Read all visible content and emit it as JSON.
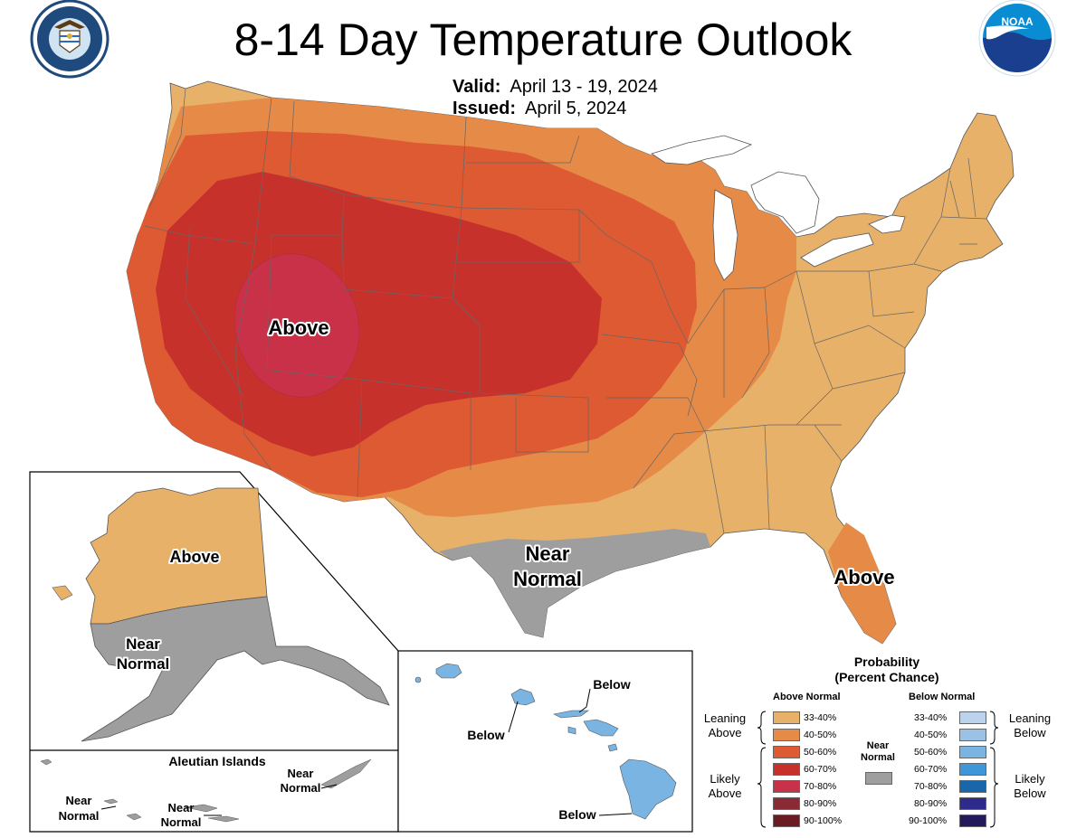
{
  "header": {
    "title": "8-14 Day Temperature Outlook",
    "valid_label": "Valid:",
    "valid_value": "April 13 - 19, 2024",
    "issued_label": "Issued:",
    "issued_value": "April 5, 2024",
    "left_logo": "seal-icon",
    "right_logo": "noaa-logo-icon",
    "right_logo_text": "NOAA"
  },
  "map": {
    "conus_labels": [
      "Above",
      "Near",
      "Normal",
      "Above"
    ],
    "alaska_labels": [
      "Above",
      "Near",
      "Normal"
    ],
    "aleutian_title": "Aleutian Islands",
    "aleutian_labels": [
      "Near",
      "Normal",
      "Near",
      "Normal",
      "Near",
      "Normal"
    ],
    "hawaii_labels": [
      "Below",
      "Below",
      "Below"
    ]
  },
  "legend": {
    "title_line1": "Probability",
    "title_line2": "(Percent Chance)",
    "above_header": "Above Normal",
    "below_header": "Below Normal",
    "near_label_1": "Near",
    "near_label_2": "Normal",
    "leaning_above_1": "Leaning",
    "leaning_above_2": "Above",
    "likely_above_1": "Likely",
    "likely_above_2": "Above",
    "leaning_below_1": "Leaning",
    "leaning_below_2": "Below",
    "likely_below_1": "Likely",
    "likely_below_2": "Below",
    "ranges": [
      "33-40%",
      "40-50%",
      "50-60%",
      "60-70%",
      "70-80%",
      "80-90%",
      "90-100%"
    ],
    "above_colors": [
      "#e8b16a",
      "#e68a48",
      "#dd5a33",
      "#c7312c",
      "#c83148",
      "#8a2a35",
      "#6b1c22"
    ],
    "below_colors": [
      "#bcd3ee",
      "#9cc1e6",
      "#79b4e2",
      "#3f96d8",
      "#1a66ab",
      "#2f2b8c",
      "#231a5c"
    ],
    "near_color": "#9e9e9e"
  }
}
